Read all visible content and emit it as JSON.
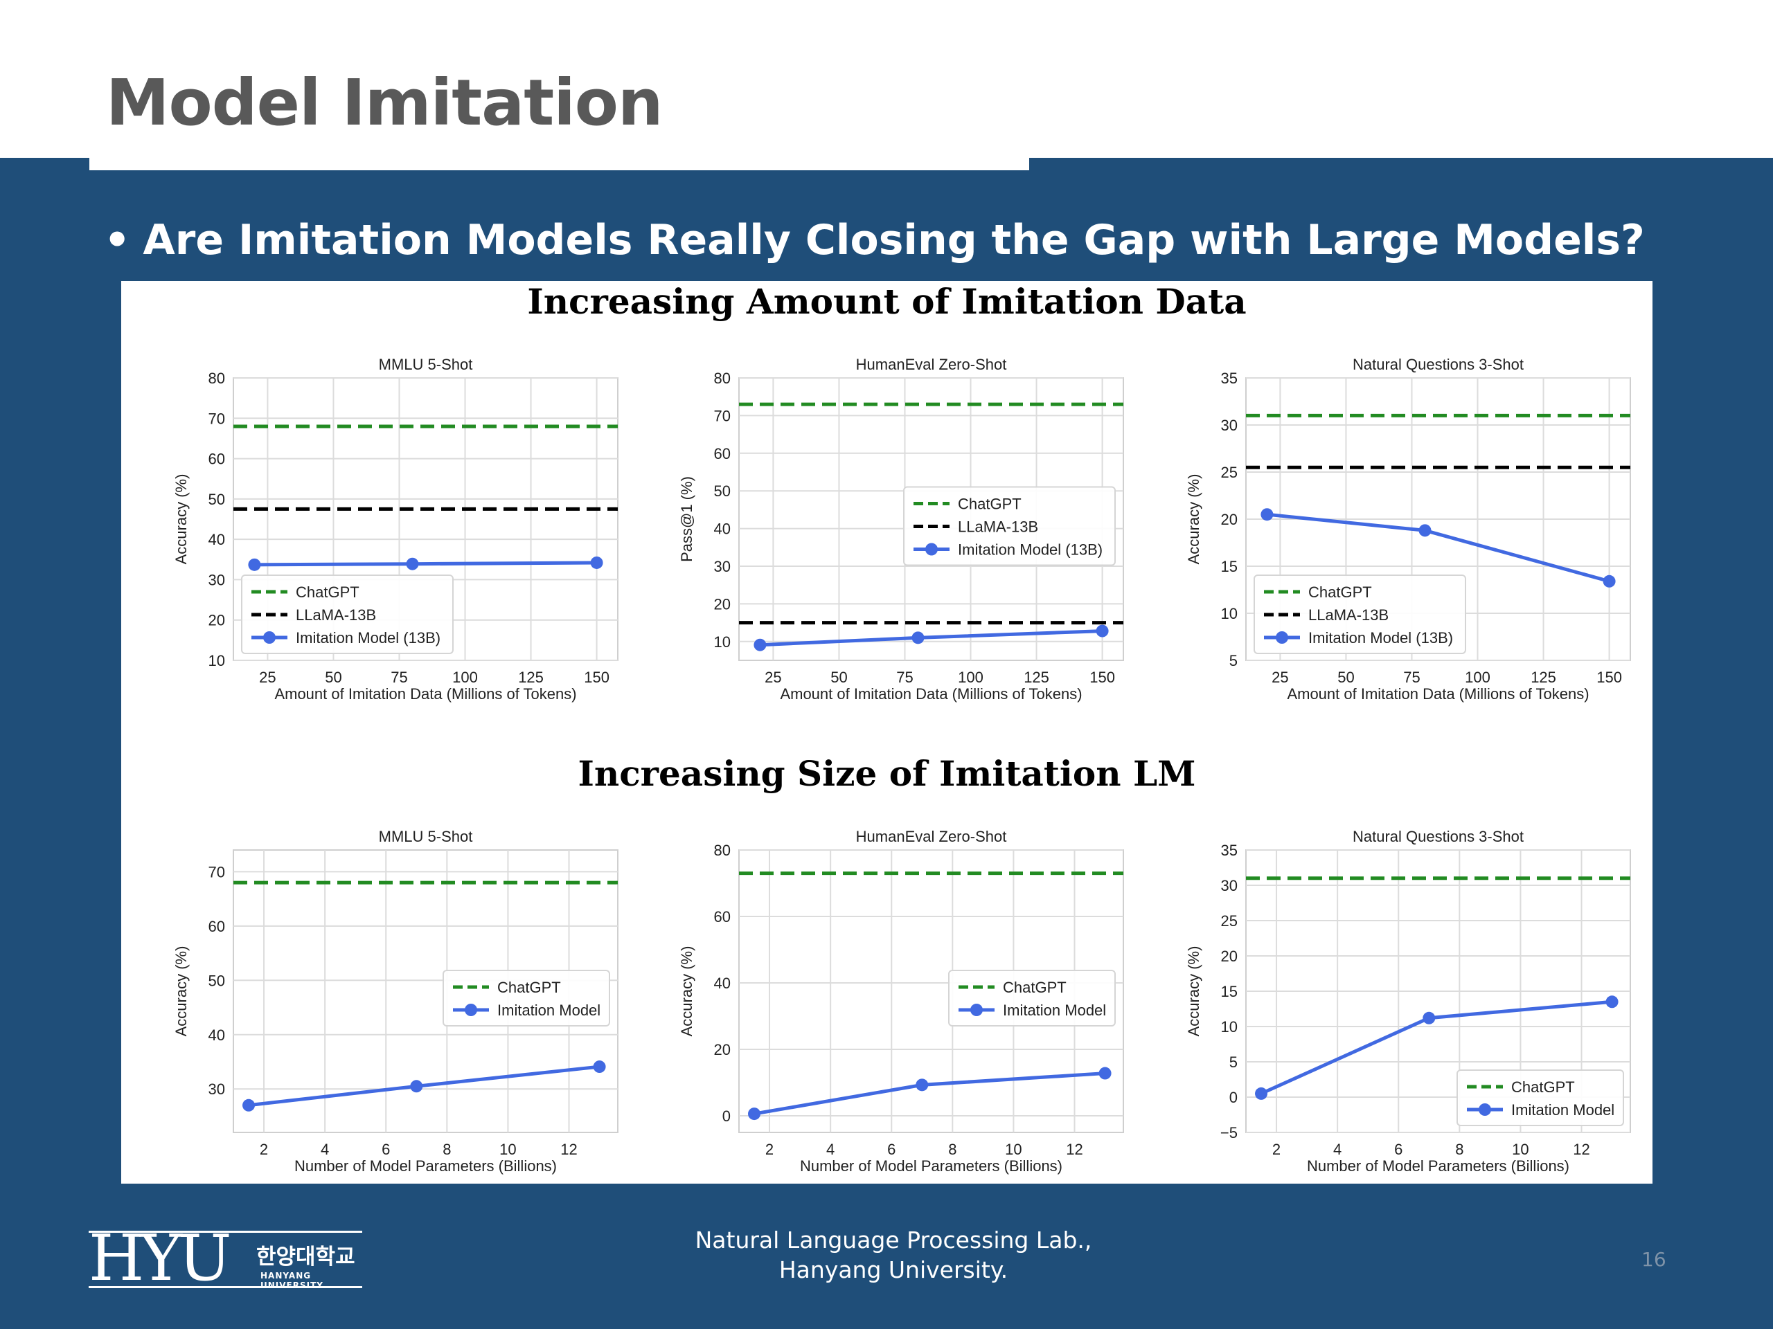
{
  "slide": {
    "title": "Model Imitation",
    "bullet": "Are Imitation Models Really Closing the Gap with Large Models?",
    "footer_line1": "Natural Language Processing Lab.,",
    "footer_line2": "Hanyang University.",
    "page_number": "16",
    "logo_text": "HYU",
    "logo_korean": "한양대학교",
    "logo_english": "HANYANG UNIVERSITY"
  },
  "sections": {
    "top_title": "Increasing Amount of Imitation Data",
    "bottom_title": "Increasing Size of Imitation LM"
  },
  "colors": {
    "chatgpt": "#228b22",
    "llama": "#000000",
    "imitation": "#4169e1",
    "background": "#1f4e79"
  },
  "chart_data": [
    {
      "type": "line",
      "title": "MMLU 5-Shot",
      "xlabel": "Amount of Imitation Data (Millions of Tokens)",
      "ylabel": "Accuracy (%)",
      "xlim": [
        12,
        158
      ],
      "ylim": [
        10,
        80
      ],
      "xticks": [
        25,
        50,
        75,
        100,
        125,
        150
      ],
      "yticks": [
        10,
        20,
        30,
        40,
        50,
        60,
        70,
        80
      ],
      "legend_position": "lower-left",
      "hlines": [
        {
          "name": "ChatGPT",
          "value": 68,
          "color_key": "chatgpt"
        },
        {
          "name": "LLaMA-13B",
          "value": 47.5,
          "color_key": "llama"
        }
      ],
      "series": [
        {
          "name": "Imitation Model (13B)",
          "x": [
            20,
            80,
            150
          ],
          "values": [
            33.7,
            33.9,
            34.2
          ],
          "color_key": "imitation"
        }
      ]
    },
    {
      "type": "line",
      "title": "HumanEval Zero-Shot",
      "xlabel": "Amount of Imitation Data (Millions of Tokens)",
      "ylabel": "Pass@1 (%)",
      "xlim": [
        12,
        158
      ],
      "ylim": [
        5,
        80
      ],
      "xticks": [
        25,
        50,
        75,
        100,
        125,
        150
      ],
      "yticks": [
        10,
        20,
        30,
        40,
        50,
        60,
        70,
        80
      ],
      "legend_position": "center-right",
      "hlines": [
        {
          "name": "ChatGPT",
          "value": 73,
          "color_key": "chatgpt"
        },
        {
          "name": "LLaMA-13B",
          "value": 15,
          "color_key": "llama"
        }
      ],
      "series": [
        {
          "name": "Imitation Model (13B)",
          "x": [
            20,
            80,
            150
          ],
          "values": [
            9.1,
            11,
            12.8
          ],
          "color_key": "imitation"
        }
      ]
    },
    {
      "type": "line",
      "title": "Natural Questions 3-Shot",
      "xlabel": "Amount of Imitation Data (Millions of Tokens)",
      "ylabel": "Accuracy (%)",
      "xlim": [
        12,
        158
      ],
      "ylim": [
        5,
        35
      ],
      "xticks": [
        25,
        50,
        75,
        100,
        125,
        150
      ],
      "yticks": [
        5,
        10,
        15,
        20,
        25,
        30,
        35
      ],
      "legend_position": "lower-left",
      "hlines": [
        {
          "name": "ChatGPT",
          "value": 31,
          "color_key": "chatgpt"
        },
        {
          "name": "LLaMA-13B",
          "value": 25.5,
          "color_key": "llama"
        }
      ],
      "series": [
        {
          "name": "Imitation Model (13B)",
          "x": [
            20,
            80,
            150
          ],
          "values": [
            20.5,
            18.8,
            13.4
          ],
          "color_key": "imitation"
        }
      ]
    },
    {
      "type": "line",
      "title": "MMLU 5-Shot",
      "xlabel": "Number of Model Parameters (Billions)",
      "ylabel": "Accuracy (%)",
      "xlim": [
        1,
        13.6
      ],
      "ylim": [
        22,
        74
      ],
      "xticks": [
        2,
        4,
        6,
        8,
        10,
        12
      ],
      "yticks": [
        30,
        40,
        50,
        60,
        70
      ],
      "legend_position": "center-right",
      "hlines": [
        {
          "name": "ChatGPT",
          "value": 68,
          "color_key": "chatgpt"
        }
      ],
      "series": [
        {
          "name": "Imitation Model",
          "x": [
            1.5,
            7,
            13
          ],
          "values": [
            27,
            30.5,
            34.1
          ],
          "color_key": "imitation"
        }
      ]
    },
    {
      "type": "line",
      "title": "HumanEval Zero-Shot",
      "xlabel": "Number of Model Parameters (Billions)",
      "ylabel": "Accuracy (%)",
      "xlim": [
        1,
        13.6
      ],
      "ylim": [
        -5,
        80
      ],
      "xticks": [
        2,
        4,
        6,
        8,
        10,
        12
      ],
      "yticks": [
        0,
        20,
        40,
        60,
        80
      ],
      "legend_position": "center-right",
      "hlines": [
        {
          "name": "ChatGPT",
          "value": 73,
          "color_key": "chatgpt"
        }
      ],
      "series": [
        {
          "name": "Imitation Model",
          "x": [
            1.5,
            7,
            13
          ],
          "values": [
            0.6,
            9.3,
            12.8
          ],
          "color_key": "imitation"
        }
      ]
    },
    {
      "type": "line",
      "title": "Natural Questions 3-Shot",
      "xlabel": "Number of Model Parameters (Billions)",
      "ylabel": "Accuracy (%)",
      "xlim": [
        1,
        13.6
      ],
      "ylim": [
        -5,
        35
      ],
      "xticks": [
        2,
        4,
        6,
        8,
        10,
        12
      ],
      "yticks": [
        -5,
        0,
        5,
        10,
        15,
        20,
        25,
        30,
        35
      ],
      "legend_position": "lower-right",
      "hlines": [
        {
          "name": "ChatGPT",
          "value": 31,
          "color_key": "chatgpt"
        }
      ],
      "series": [
        {
          "name": "Imitation Model",
          "x": [
            1.5,
            7,
            13
          ],
          "values": [
            0.5,
            11.2,
            13.5
          ],
          "color_key": "imitation"
        }
      ]
    }
  ]
}
